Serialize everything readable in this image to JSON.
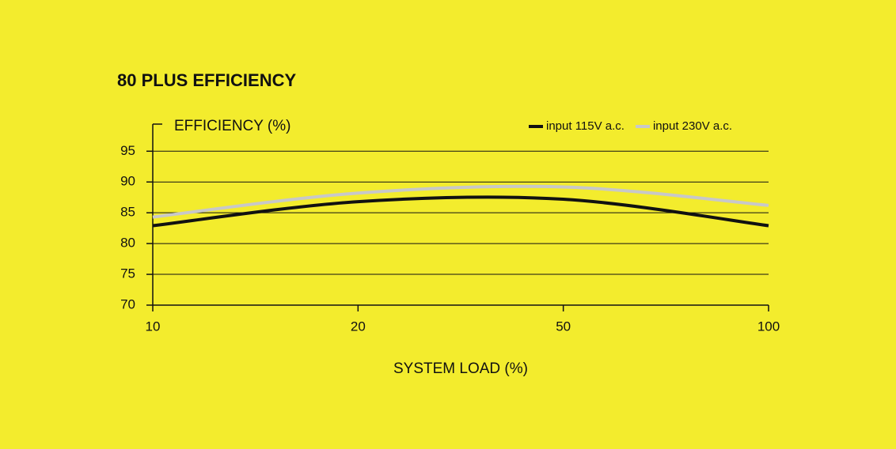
{
  "chart_data": {
    "type": "line",
    "title": "80 PLUS EFFICIENCY",
    "y_label": "EFFICIENCY (%)",
    "x_label": "SYSTEM LOAD (%)",
    "categories": [
      "10",
      "20",
      "50",
      "100"
    ],
    "series": [
      {
        "name": "input 115V a.c.",
        "color": "#111111",
        "values": [
          82.9,
          86.8,
          87.2,
          82.9
        ]
      },
      {
        "name": "input 230V a.c.",
        "color": "#c8c8c8",
        "values": [
          84.3,
          88.2,
          89.2,
          86.2
        ]
      }
    ],
    "ylim": [
      70,
      99.4
    ],
    "yticks": [
      70,
      75,
      80,
      85,
      90,
      95
    ],
    "grid": true,
    "legend": "top-right"
  }
}
